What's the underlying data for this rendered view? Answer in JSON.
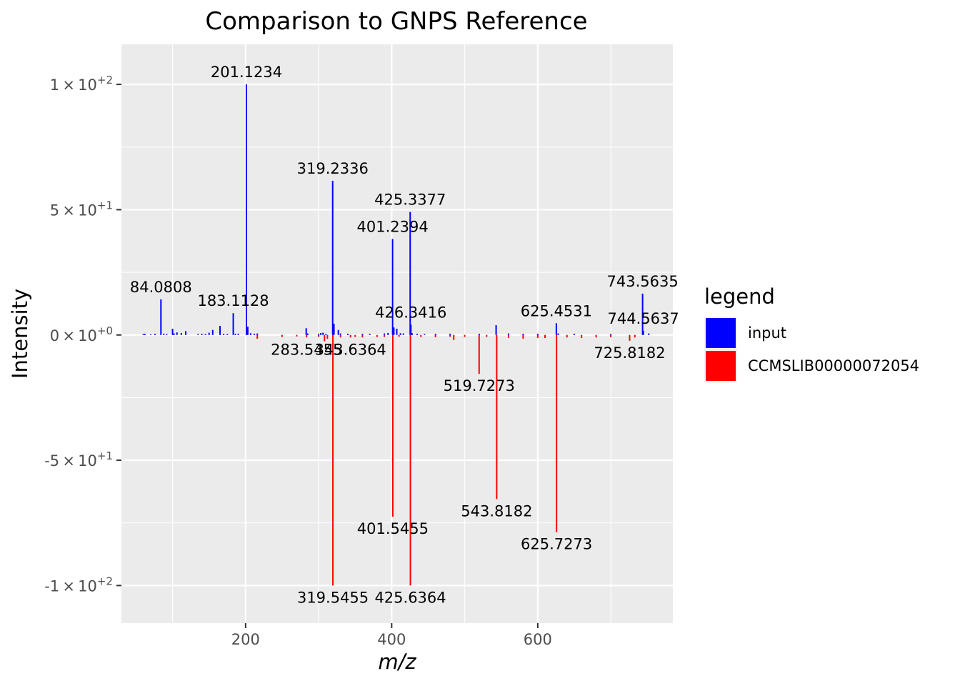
{
  "chart_data": {
    "type": "bar",
    "title": "Comparison to GNPS Reference",
    "xlabel": "m/z",
    "ylabel": "Intensity",
    "xlim": [
      30,
      785
    ],
    "ylim": [
      -115,
      116
    ],
    "x_ticks": [
      {
        "value": 200,
        "label": "200"
      },
      {
        "value": 400,
        "label": "400"
      },
      {
        "value": 600,
        "label": "600"
      }
    ],
    "y_ticks": [
      {
        "value": 100,
        "mantissa": "1",
        "exponent": "+2"
      },
      {
        "value": 50,
        "mantissa": "5",
        "exponent": "+1"
      },
      {
        "value": 0,
        "mantissa": "0",
        "exponent": "+0"
      },
      {
        "value": -50,
        "mantissa": "-5",
        "exponent": "+1"
      },
      {
        "value": -100,
        "mantissa": "-1",
        "exponent": "+2"
      }
    ],
    "grid": true,
    "legend": {
      "title": "legend",
      "position": "right",
      "entries": [
        {
          "name": "input",
          "color": "#0000ff"
        },
        {
          "name": "CCMSLIB00000072054",
          "color": "#ff0000"
        }
      ]
    },
    "series": [
      {
        "name": "input",
        "color": "#0000ff",
        "x": [
          60,
          62,
          70,
          76,
          84.0808,
          88,
          92,
          100,
          102,
          106,
          112,
          118,
          135,
          140,
          145,
          150,
          155,
          165,
          170,
          175,
          183.1128,
          186,
          190,
          201.1234,
          203,
          207,
          212,
          216,
          283,
          285,
          300,
          303,
          306,
          310,
          319.2336,
          321,
          327,
          330,
          340,
          360,
          370,
          390,
          395,
          401.2394,
          403,
          407,
          412,
          416,
          425.3377,
          426.3416,
          428,
          435,
          445,
          460,
          480,
          520,
          543,
          560,
          580,
          600,
          625.4531,
          628,
          650,
          700,
          743.5635,
          744.5637,
          752
        ],
        "values": [
          0.4,
          0.5,
          0.3,
          0.5,
          14.2,
          0.5,
          0.4,
          2.5,
          0.6,
          1.0,
          0.8,
          1.5,
          0.4,
          0.5,
          0.4,
          0.9,
          2.0,
          3.6,
          0.5,
          0.4,
          8.7,
          0.5,
          0.5,
          100,
          3.3,
          0.7,
          0.5,
          0.6,
          2.7,
          0.6,
          0.5,
          0.8,
          0.9,
          0.4,
          61.5,
          4.5,
          2.0,
          0.6,
          0.5,
          0.5,
          0.5,
          0.6,
          0.8,
          38.3,
          3.0,
          2.5,
          0.7,
          0.6,
          49.1,
          4.1,
          0.7,
          0.5,
          0.4,
          0.5,
          0.5,
          0.5,
          3.9,
          0.6,
          0.5,
          0.5,
          4.7,
          0.6,
          0.5,
          0.4,
          16.5,
          1.7,
          0.6
        ]
      },
      {
        "name": "CCMSLIB00000072054",
        "color": "#ff0000",
        "x": [
          216,
          250,
          270,
          283.5455,
          300,
          308,
          312,
          319.5455,
          330,
          343.6364,
          350,
          360,
          380,
          390,
          401.5455,
          410,
          425.6364,
          440,
          460,
          480,
          485,
          500,
          519.7273,
          530,
          543.8182,
          560,
          580,
          600,
          610,
          625.7273,
          640,
          660,
          680,
          700,
          725.8182,
          733
        ],
        "values": [
          -1.5,
          -0.8,
          -0.6,
          -1.0,
          -0.8,
          -2.5,
          -1.5,
          -100,
          -1.0,
          -1.0,
          -0.8,
          -1.0,
          -0.8,
          -0.8,
          -72.5,
          -0.7,
          -100,
          -0.8,
          -0.9,
          -0.7,
          -2.0,
          -0.8,
          -15.5,
          -0.8,
          -65.5,
          -1.2,
          -1.5,
          -1.2,
          -1.2,
          -78.7,
          -1.0,
          -1.2,
          -1.0,
          -0.9,
          -2.3,
          -1.0
        ]
      }
    ],
    "annotations": [
      {
        "label": "201.1234",
        "x": 201.1234,
        "y": 100,
        "side": "top"
      },
      {
        "label": "319.2336",
        "x": 319.2336,
        "y": 61.5,
        "side": "top"
      },
      {
        "label": "425.3377",
        "x": 425.3377,
        "y": 49.1,
        "side": "top"
      },
      {
        "label": "401.2394",
        "x": 401.2394,
        "y": 38.3,
        "side": "top"
      },
      {
        "label": "84.0808",
        "x": 84.0808,
        "y": 14.2,
        "side": "top"
      },
      {
        "label": "183.1128",
        "x": 183.1128,
        "y": 8.7,
        "side": "top"
      },
      {
        "label": "743.5635",
        "x": 743.5635,
        "y": 16.5,
        "side": "top"
      },
      {
        "label": "426.3416",
        "x": 426.3416,
        "y": 4.1,
        "side": "top"
      },
      {
        "label": "625.4531",
        "x": 625.4531,
        "y": 4.7,
        "side": "top"
      },
      {
        "label": "744.5637",
        "x": 744.5637,
        "y": 1.7,
        "side": "top"
      },
      {
        "label": "283.5455",
        "x": 283.5455,
        "y": -1.0,
        "side": "bottom"
      },
      {
        "label": "343.6364",
        "x": 343.6364,
        "y": -1.0,
        "side": "bottom"
      },
      {
        "label": "725.8182",
        "x": 725.8182,
        "y": -2.3,
        "side": "bottom"
      },
      {
        "label": "519.7273",
        "x": 519.7273,
        "y": -15.5,
        "side": "bottom"
      },
      {
        "label": "543.8182",
        "x": 543.8182,
        "y": -65.5,
        "side": "bottom"
      },
      {
        "label": "401.5455",
        "x": 401.5455,
        "y": -72.5,
        "side": "bottom"
      },
      {
        "label": "625.7273",
        "x": 625.7273,
        "y": -78.7,
        "side": "bottom"
      },
      {
        "label": "319.5455",
        "x": 319.5455,
        "y": -100,
        "side": "bottom"
      },
      {
        "label": "425.6364",
        "x": 425.6364,
        "y": -100,
        "side": "bottom"
      }
    ]
  }
}
